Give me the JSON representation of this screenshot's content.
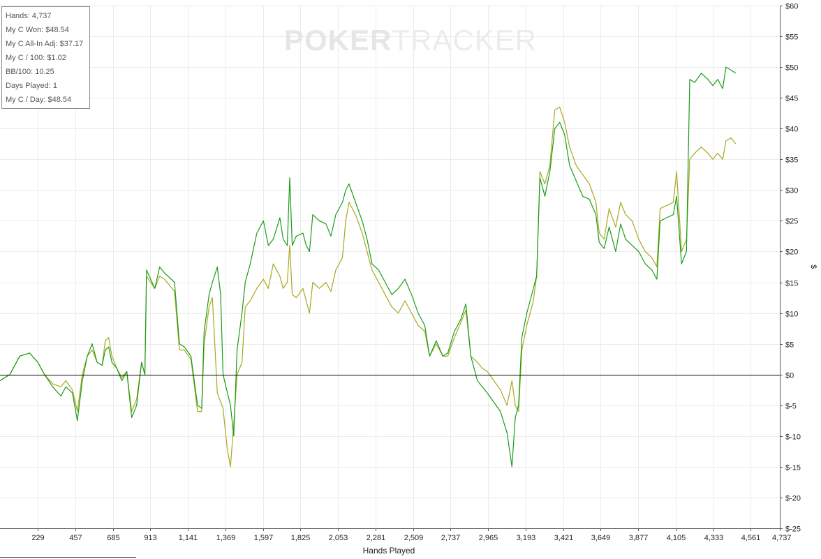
{
  "stats": {
    "lines": [
      "Hands: 4,737",
      "My C Won: $48.54",
      "My C All-In Adj: $37.17",
      "My C / 100: $1.02",
      "BB/100: 10.25",
      "Days Played: 1",
      "My C / Day: $48.54"
    ]
  },
  "watermark": {
    "part1": "POKER",
    "part2": "TRACKER"
  },
  "chart_data": {
    "type": "line",
    "xlabel": "Hands Played",
    "ylabel": "$",
    "xlim": [
      0,
      4737
    ],
    "ylim": [
      -25,
      60
    ],
    "x_ticks": [
      229,
      457,
      685,
      913,
      1141,
      1369,
      1597,
      1825,
      2053,
      2281,
      2509,
      2737,
      2965,
      3193,
      3421,
      3649,
      3877,
      4105,
      4333,
      4561,
      4737
    ],
    "x_tick_labels": [
      "229",
      "457",
      "685",
      "913",
      "1,141",
      "1,369",
      "1,597",
      "1,825",
      "2,053",
      "2,281",
      "2,509",
      "2,737",
      "2,965",
      "3,193",
      "3,421",
      "3,649",
      "3,877",
      "4,105",
      "4,333",
      "4,561",
      "4,737"
    ],
    "y_ticks": [
      -25,
      -20,
      -15,
      -10,
      -5,
      0,
      5,
      10,
      15,
      20,
      25,
      30,
      35,
      40,
      45,
      50,
      55,
      60
    ],
    "y_tick_labels": [
      "$-25",
      "$-20",
      "$-15",
      "$-10",
      "$-5",
      "$0",
      "$5",
      "$10",
      "$15",
      "$20",
      "$25",
      "$30",
      "$35",
      "$40",
      "$45",
      "$50",
      "$55",
      "$60"
    ],
    "grid": true,
    "zero_line": true,
    "colors": {
      "won": "#1a9c1a",
      "allin_adj": "#a8a81e",
      "grid": "#ebebeb",
      "axis": "#000000"
    },
    "series": [
      {
        "color": "#1a9c1a",
        "points": [
          [
            0,
            -1
          ],
          [
            60,
            0
          ],
          [
            120,
            3
          ],
          [
            180,
            3.5
          ],
          [
            230,
            2
          ],
          [
            270,
            0
          ],
          [
            320,
            -2
          ],
          [
            370,
            -3.5
          ],
          [
            400,
            -2
          ],
          [
            440,
            -3
          ],
          [
            470,
            -7.5
          ],
          [
            500,
            -1
          ],
          [
            530,
            3
          ],
          [
            560,
            5
          ],
          [
            590,
            2
          ],
          [
            620,
            1.5
          ],
          [
            640,
            4
          ],
          [
            660,
            4.5
          ],
          [
            680,
            2
          ],
          [
            710,
            1
          ],
          [
            740,
            -1
          ],
          [
            770,
            0.5
          ],
          [
            800,
            -7
          ],
          [
            830,
            -5
          ],
          [
            860,
            2
          ],
          [
            880,
            0
          ],
          [
            890,
            17
          ],
          [
            940,
            14
          ],
          [
            970,
            17.5
          ],
          [
            1000,
            16.5
          ],
          [
            1060,
            15
          ],
          [
            1090,
            5
          ],
          [
            1120,
            4.5
          ],
          [
            1160,
            3
          ],
          [
            1200,
            -5
          ],
          [
            1225,
            -5.5
          ],
          [
            1240,
            7
          ],
          [
            1270,
            13
          ],
          [
            1290,
            15
          ],
          [
            1320,
            17.5
          ],
          [
            1340,
            13
          ],
          [
            1355,
            0
          ],
          [
            1400,
            -5
          ],
          [
            1420,
            -10
          ],
          [
            1440,
            4
          ],
          [
            1470,
            10
          ],
          [
            1490,
            15
          ],
          [
            1520,
            18
          ],
          [
            1560,
            23
          ],
          [
            1600,
            25
          ],
          [
            1630,
            21
          ],
          [
            1660,
            22
          ],
          [
            1700,
            25.5
          ],
          [
            1720,
            22
          ],
          [
            1745,
            21
          ],
          [
            1760,
            32
          ],
          [
            1775,
            21
          ],
          [
            1800,
            22.5
          ],
          [
            1840,
            23
          ],
          [
            1860,
            21
          ],
          [
            1880,
            20
          ],
          [
            1900,
            26
          ],
          [
            1940,
            25
          ],
          [
            1980,
            24.5
          ],
          [
            2010,
            22.5
          ],
          [
            2040,
            26
          ],
          [
            2080,
            28
          ],
          [
            2100,
            30
          ],
          [
            2120,
            31
          ],
          [
            2160,
            28
          ],
          [
            2200,
            25
          ],
          [
            2230,
            22
          ],
          [
            2260,
            18
          ],
          [
            2300,
            17
          ],
          [
            2340,
            15
          ],
          [
            2380,
            13
          ],
          [
            2420,
            14
          ],
          [
            2460,
            15.5
          ],
          [
            2500,
            13
          ],
          [
            2540,
            10
          ],
          [
            2580,
            8
          ],
          [
            2610,
            3
          ],
          [
            2650,
            5.5
          ],
          [
            2690,
            3
          ],
          [
            2720,
            3.5
          ],
          [
            2760,
            7
          ],
          [
            2800,
            9
          ],
          [
            2830,
            11.5
          ],
          [
            2860,
            3
          ],
          [
            2900,
            -1
          ],
          [
            2930,
            -2
          ],
          [
            2960,
            -3
          ],
          [
            3000,
            -4.5
          ],
          [
            3040,
            -6
          ],
          [
            3080,
            -9.5
          ],
          [
            3110,
            -15
          ],
          [
            3130,
            -7
          ],
          [
            3150,
            -5
          ],
          [
            3170,
            6
          ],
          [
            3200,
            10
          ],
          [
            3240,
            14
          ],
          [
            3260,
            16
          ],
          [
            3280,
            32
          ],
          [
            3310,
            29
          ],
          [
            3340,
            33
          ],
          [
            3370,
            40
          ],
          [
            3400,
            41
          ],
          [
            3430,
            39
          ],
          [
            3460,
            34
          ],
          [
            3500,
            31.5
          ],
          [
            3540,
            29
          ],
          [
            3580,
            28.5
          ],
          [
            3620,
            26
          ],
          [
            3640,
            21.5
          ],
          [
            3670,
            20.5
          ],
          [
            3700,
            24
          ],
          [
            3740,
            20
          ],
          [
            3770,
            24.5
          ],
          [
            3800,
            22
          ],
          [
            3840,
            21
          ],
          [
            3880,
            20
          ],
          [
            3920,
            18
          ],
          [
            3960,
            17
          ],
          [
            3990,
            15.5
          ],
          [
            4010,
            25
          ],
          [
            4050,
            25.5
          ],
          [
            4090,
            26
          ],
          [
            4110,
            29
          ],
          [
            4140,
            18
          ],
          [
            4170,
            20
          ],
          [
            4190,
            48
          ],
          [
            4220,
            47.5
          ],
          [
            4260,
            49
          ],
          [
            4300,
            48
          ],
          [
            4330,
            47
          ],
          [
            4360,
            48
          ],
          [
            4390,
            46.5
          ],
          [
            4410,
            50
          ],
          [
            4440,
            49.5
          ],
          [
            4470,
            49
          ]
        ]
      },
      {
        "color": "#a8a81e",
        "points": [
          [
            0,
            -1
          ],
          [
            60,
            0
          ],
          [
            120,
            3
          ],
          [
            180,
            3.5
          ],
          [
            230,
            2
          ],
          [
            270,
            0
          ],
          [
            320,
            -1.5
          ],
          [
            370,
            -2
          ],
          [
            400,
            -1
          ],
          [
            440,
            -2.5
          ],
          [
            470,
            -6
          ],
          [
            500,
            0
          ],
          [
            530,
            3
          ],
          [
            560,
            4
          ],
          [
            590,
            2
          ],
          [
            620,
            1.5
          ],
          [
            640,
            5.5
          ],
          [
            660,
            6
          ],
          [
            680,
            3
          ],
          [
            710,
            1
          ],
          [
            740,
            -0.5
          ],
          [
            770,
            0.5
          ],
          [
            800,
            -6
          ],
          [
            830,
            -4
          ],
          [
            860,
            2
          ],
          [
            880,
            0
          ],
          [
            890,
            16
          ],
          [
            940,
            14
          ],
          [
            970,
            16
          ],
          [
            1000,
            15.5
          ],
          [
            1060,
            13.5
          ],
          [
            1090,
            4
          ],
          [
            1120,
            4
          ],
          [
            1160,
            2.5
          ],
          [
            1200,
            -6
          ],
          [
            1225,
            -6
          ],
          [
            1240,
            5
          ],
          [
            1270,
            11
          ],
          [
            1290,
            12.5
          ],
          [
            1320,
            -3
          ],
          [
            1355,
            -5.5
          ],
          [
            1380,
            -12
          ],
          [
            1400,
            -15
          ],
          [
            1420,
            -8
          ],
          [
            1440,
            0
          ],
          [
            1470,
            2
          ],
          [
            1490,
            11
          ],
          [
            1520,
            12
          ],
          [
            1560,
            14
          ],
          [
            1600,
            15.5
          ],
          [
            1630,
            14
          ],
          [
            1660,
            18
          ],
          [
            1700,
            16
          ],
          [
            1720,
            14
          ],
          [
            1745,
            15
          ],
          [
            1760,
            21
          ],
          [
            1775,
            13
          ],
          [
            1800,
            12.5
          ],
          [
            1840,
            14
          ],
          [
            1860,
            12
          ],
          [
            1880,
            10
          ],
          [
            1900,
            15
          ],
          [
            1940,
            14
          ],
          [
            1980,
            15
          ],
          [
            2010,
            13.5
          ],
          [
            2040,
            17
          ],
          [
            2080,
            19
          ],
          [
            2100,
            25
          ],
          [
            2120,
            28
          ],
          [
            2160,
            26
          ],
          [
            2200,
            23
          ],
          [
            2230,
            20
          ],
          [
            2260,
            17
          ],
          [
            2300,
            15
          ],
          [
            2340,
            13
          ],
          [
            2380,
            11
          ],
          [
            2420,
            10
          ],
          [
            2460,
            12
          ],
          [
            2500,
            10
          ],
          [
            2540,
            8
          ],
          [
            2580,
            7
          ],
          [
            2610,
            3
          ],
          [
            2650,
            5
          ],
          [
            2690,
            3
          ],
          [
            2720,
            3
          ],
          [
            2760,
            6
          ],
          [
            2800,
            8.5
          ],
          [
            2830,
            10.5
          ],
          [
            2860,
            3
          ],
          [
            2900,
            2
          ],
          [
            2930,
            1
          ],
          [
            2960,
            0.5
          ],
          [
            3000,
            -1
          ],
          [
            3040,
            -2.5
          ],
          [
            3080,
            -5
          ],
          [
            3110,
            -1
          ],
          [
            3130,
            -5
          ],
          [
            3150,
            -6
          ],
          [
            3170,
            4
          ],
          [
            3200,
            8
          ],
          [
            3240,
            12
          ],
          [
            3260,
            16
          ],
          [
            3280,
            33
          ],
          [
            3310,
            31
          ],
          [
            3340,
            34
          ],
          [
            3370,
            43
          ],
          [
            3400,
            43.5
          ],
          [
            3430,
            41
          ],
          [
            3460,
            37
          ],
          [
            3500,
            34
          ],
          [
            3540,
            32.5
          ],
          [
            3580,
            31
          ],
          [
            3620,
            28
          ],
          [
            3640,
            23
          ],
          [
            3670,
            22
          ],
          [
            3700,
            27
          ],
          [
            3740,
            24
          ],
          [
            3770,
            28
          ],
          [
            3800,
            26
          ],
          [
            3840,
            25
          ],
          [
            3880,
            22
          ],
          [
            3920,
            20
          ],
          [
            3960,
            19
          ],
          [
            3990,
            17.5
          ],
          [
            4010,
            27
          ],
          [
            4050,
            27.5
          ],
          [
            4090,
            28
          ],
          [
            4110,
            33
          ],
          [
            4140,
            20
          ],
          [
            4170,
            22
          ],
          [
            4190,
            35
          ],
          [
            4220,
            36
          ],
          [
            4260,
            37
          ],
          [
            4300,
            36
          ],
          [
            4330,
            35
          ],
          [
            4360,
            36
          ],
          [
            4390,
            35
          ],
          [
            4410,
            38
          ],
          [
            4440,
            38.5
          ],
          [
            4470,
            37.5
          ]
        ]
      }
    ]
  }
}
